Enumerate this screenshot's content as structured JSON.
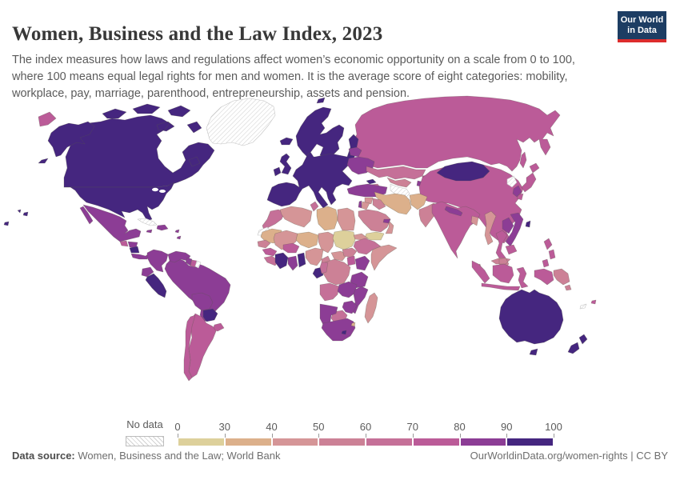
{
  "header": {
    "title": "Women, Business and the Law Index, 2023",
    "subtitle": "The index measures how laws and regulations affect women’s economic opportunity on a scale from 0 to 100, where 100 means equal legal rights for men and women. It is the average score of eight categories: mobility, workplace, pay, marriage, parenthood, entrepreneurship, assets and pension.",
    "logo": {
      "line1": "Our World",
      "line2": "in Data",
      "bg_color": "#1d3d63",
      "accent_color": "#dc2c2c"
    }
  },
  "legend": {
    "no_data_label": "No data",
    "ticks": [
      0,
      30,
      40,
      50,
      60,
      70,
      80,
      90,
      100
    ]
  },
  "footer": {
    "source_label": "Data source:",
    "source_text": " Women, Business and the Law; World Bank",
    "link_text": "OurWorldinData.org/women-rights",
    "separator": " | ",
    "license_text": "CC BY"
  },
  "chart_data": {
    "type": "heatmap",
    "subtype": "choropleth-world-map",
    "title": "Women, Business and the Law Index, 2023",
    "unit_range": [
      0,
      100
    ],
    "legend_position": "bottom",
    "scale": {
      "bins": [
        {
          "label": "0-30",
          "color": "#ddd09b"
        },
        {
          "label": "30-40",
          "color": "#dcb08b"
        },
        {
          "label": "40-50",
          "color": "#d59597"
        },
        {
          "label": "50-60",
          "color": "#cc8196"
        },
        {
          "label": "60-70",
          "color": "#c57098"
        },
        {
          "label": "70-80",
          "color": "#bb5b98"
        },
        {
          "label": "80-90",
          "color": "#8c3d95"
        },
        {
          "label": "90-100",
          "color": "#45267f"
        }
      ],
      "no_data": {
        "label": "No data",
        "pattern": "diagonal-hatch",
        "hatch_color": "#d2d2d2"
      }
    },
    "regions": [
      {
        "id": "greenland",
        "name": "Greenland",
        "value_bin": "no-data"
      },
      {
        "id": "canada",
        "name": "Canada",
        "value_bin": "90-100"
      },
      {
        "id": "usa",
        "name": "United States",
        "value_bin": "90-100"
      },
      {
        "id": "mexico",
        "name": "Mexico",
        "value_bin": "80-90"
      },
      {
        "id": "guatemala",
        "name": "Guatemala",
        "value_bin": "70-80"
      },
      {
        "id": "honduras",
        "name": "Honduras",
        "value_bin": "80-90"
      },
      {
        "id": "nicaragua",
        "name": "Nicaragua",
        "value_bin": "90-100"
      },
      {
        "id": "costa_rica_panama",
        "name": "Costa Rica & Panama",
        "value_bin": "80-90"
      },
      {
        "id": "cuba",
        "name": "Cuba",
        "value_bin": "no-data"
      },
      {
        "id": "hispaniola",
        "name": "Haiti & Dominican Republic",
        "value_bin": "80-90"
      },
      {
        "id": "jamaica",
        "name": "Jamaica",
        "value_bin": "80-90"
      },
      {
        "id": "lesser_antilles",
        "name": "Lesser Antilles",
        "value_bin": "80-90"
      },
      {
        "id": "brazil",
        "name": "Brazil",
        "value_bin": "80-90"
      },
      {
        "id": "colombia",
        "name": "Colombia",
        "value_bin": "80-90"
      },
      {
        "id": "venezuela",
        "name": "Venezuela",
        "value_bin": "80-90"
      },
      {
        "id": "guyana",
        "name": "Guyana",
        "value_bin": "80-90"
      },
      {
        "id": "suriname",
        "name": "Suriname",
        "value_bin": "70-80"
      },
      {
        "id": "french_guiana",
        "name": "French Guiana",
        "value_bin": "no-data"
      },
      {
        "id": "ecuador",
        "name": "Ecuador",
        "value_bin": "80-90"
      },
      {
        "id": "peru",
        "name": "Peru",
        "value_bin": "90-100"
      },
      {
        "id": "bolivia",
        "name": "Bolivia",
        "value_bin": "80-90"
      },
      {
        "id": "paraguay",
        "name": "Paraguay",
        "value_bin": "90-100"
      },
      {
        "id": "uruguay",
        "name": "Uruguay",
        "value_bin": "70-80"
      },
      {
        "id": "argentina",
        "name": "Argentina",
        "value_bin": "70-80"
      },
      {
        "id": "chile",
        "name": "Chile",
        "value_bin": "70-80"
      },
      {
        "id": "russia",
        "name": "Russia",
        "value_bin": "70-80"
      },
      {
        "id": "nordic",
        "name": "Norway, Sweden & Finland",
        "value_bin": "90-100"
      },
      {
        "id": "europe_main",
        "name": "Western & Central Europe",
        "value_bin": "90-100"
      },
      {
        "id": "iceland",
        "name": "Iceland",
        "value_bin": "90-100"
      },
      {
        "id": "uk",
        "name": "United Kingdom",
        "value_bin": "90-100"
      },
      {
        "id": "ireland",
        "name": "Ireland",
        "value_bin": "90-100"
      },
      {
        "id": "belarus",
        "name": "Belarus",
        "value_bin": "80-90"
      },
      {
        "id": "ukraine",
        "name": "Ukraine",
        "value_bin": "80-90"
      },
      {
        "id": "kazakhstan",
        "name": "Kazakhstan",
        "value_bin": "60-70"
      },
      {
        "id": "uzbekistan",
        "name": "Uzbekistan",
        "value_bin": "50-60"
      },
      {
        "id": "turkmenistan",
        "name": "Turkmenistan",
        "value_bin": "no-data"
      },
      {
        "id": "kyrgyzstan",
        "name": "Kyrgyzstan",
        "value_bin": "70-80"
      },
      {
        "id": "tajikistan",
        "name": "Tajikistan",
        "value_bin": "80-90"
      },
      {
        "id": "georgia",
        "name": "Georgia",
        "value_bin": "90-100"
      },
      {
        "id": "armenia_azerbaijan",
        "name": "Armenia & Azerbaijan",
        "value_bin": "60-70"
      },
      {
        "id": "turkey",
        "name": "Turkey",
        "value_bin": "80-90"
      },
      {
        "id": "china",
        "name": "China",
        "value_bin": "70-80"
      },
      {
        "id": "mongolia",
        "name": "Mongolia",
        "value_bin": "90-100"
      },
      {
        "id": "north_korea",
        "name": "North Korea",
        "value_bin": "no-data"
      },
      {
        "id": "south_korea",
        "name": "South Korea",
        "value_bin": "80-90"
      },
      {
        "id": "japan",
        "name": "Japan",
        "value_bin": "70-80"
      },
      {
        "id": "taiwan",
        "name": "Taiwan",
        "value_bin": "90-100"
      },
      {
        "id": "iran",
        "name": "Iran",
        "value_bin": "30-40"
      },
      {
        "id": "iraq",
        "name": "Iraq",
        "value_bin": "50-60"
      },
      {
        "id": "syria",
        "name": "Syria",
        "value_bin": "40-50"
      },
      {
        "id": "israel",
        "name": "Israel",
        "value_bin": "80-90"
      },
      {
        "id": "jordan",
        "name": "Jordan",
        "value_bin": "40-50"
      },
      {
        "id": "saudi_arabia",
        "name": "Saudi Arabia",
        "value_bin": "50-60"
      },
      {
        "id": "yemen",
        "name": "Yemen",
        "value_bin": "0-30"
      },
      {
        "id": "oman",
        "name": "Oman",
        "value_bin": "40-50"
      },
      {
        "id": "uae",
        "name": "United Arab Emirates",
        "value_bin": "80-90"
      },
      {
        "id": "afghanistan",
        "name": "Afghanistan",
        "value_bin": "30-40"
      },
      {
        "id": "pakistan",
        "name": "Pakistan",
        "value_bin": "50-60"
      },
      {
        "id": "india",
        "name": "India",
        "value_bin": "70-80"
      },
      {
        "id": "nepal",
        "name": "Nepal",
        "value_bin": "80-90"
      },
      {
        "id": "bangladesh",
        "name": "Bangladesh",
        "value_bin": "40-50"
      },
      {
        "id": "sri_lanka",
        "name": "Sri Lanka",
        "value_bin": "50-60"
      },
      {
        "id": "myanmar",
        "name": "Myanmar",
        "value_bin": "40-50"
      },
      {
        "id": "thailand",
        "name": "Thailand",
        "value_bin": "70-80"
      },
      {
        "id": "laos",
        "name": "Laos",
        "value_bin": "80-90"
      },
      {
        "id": "vietnam",
        "name": "Vietnam",
        "value_bin": "80-90"
      },
      {
        "id": "cambodia",
        "name": "Cambodia",
        "value_bin": "70-80"
      },
      {
        "id": "malaysia",
        "name": "Malaysia",
        "value_bin": "50-60"
      },
      {
        "id": "indonesia",
        "name": "Indonesia",
        "value_bin": "70-80"
      },
      {
        "id": "papua_new_guinea",
        "name": "Papua New Guinea",
        "value_bin": "50-60"
      },
      {
        "id": "philippines",
        "name": "Philippines",
        "value_bin": "70-80"
      },
      {
        "id": "morocco",
        "name": "Morocco",
        "value_bin": "60-70"
      },
      {
        "id": "western_sahara",
        "name": "Western Sahara",
        "value_bin": "no-data"
      },
      {
        "id": "algeria",
        "name": "Algeria",
        "value_bin": "40-50"
      },
      {
        "id": "tunisia",
        "name": "Tunisia",
        "value_bin": "60-70"
      },
      {
        "id": "libya",
        "name": "Libya",
        "value_bin": "30-40"
      },
      {
        "id": "egypt",
        "name": "Egypt",
        "value_bin": "40-50"
      },
      {
        "id": "mauritania",
        "name": "Mauritania",
        "value_bin": "30-40"
      },
      {
        "id": "mali",
        "name": "Mali",
        "value_bin": "40-50"
      },
      {
        "id": "niger",
        "name": "Niger",
        "value_bin": "30-40"
      },
      {
        "id": "chad",
        "name": "Chad",
        "value_bin": "40-50"
      },
      {
        "id": "sudan",
        "name": "Sudan",
        "value_bin": "0-30"
      },
      {
        "id": "eritrea_djibouti",
        "name": "Eritrea & Djibouti",
        "value_bin": "40-50"
      },
      {
        "id": "senegal",
        "name": "Senegal",
        "value_bin": "50-60"
      },
      {
        "id": "guinea",
        "name": "Guinea",
        "value_bin": "70-80"
      },
      {
        "id": "sierra_leone_liberia",
        "name": "Sierra Leone & Liberia",
        "value_bin": "60-70"
      },
      {
        "id": "cote_divoire",
        "name": "Côte d'Ivoire",
        "value_bin": "90-100"
      },
      {
        "id": "ghana",
        "name": "Ghana",
        "value_bin": "80-90"
      },
      {
        "id": "togo_benin",
        "name": "Togo & Benin",
        "value_bin": "90-100"
      },
      {
        "id": "burkina_faso",
        "name": "Burkina Faso",
        "value_bin": "70-80"
      },
      {
        "id": "nigeria",
        "name": "Nigeria",
        "value_bin": "40-50"
      },
      {
        "id": "cameroon",
        "name": "Cameroon",
        "value_bin": "50-60"
      },
      {
        "id": "central_african_republic",
        "name": "Central African Republic",
        "value_bin": "40-50"
      },
      {
        "id": "south_sudan",
        "name": "South Sudan",
        "value_bin": "50-60"
      },
      {
        "id": "ethiopia",
        "name": "Ethiopia",
        "value_bin": "60-70"
      },
      {
        "id": "somalia",
        "name": "Somalia",
        "value_bin": "40-50"
      },
      {
        "id": "kenya",
        "name": "Kenya",
        "value_bin": "80-90"
      },
      {
        "id": "uganda",
        "name": "Uganda",
        "value_bin": "70-80"
      },
      {
        "id": "drc",
        "name": "Democratic Republic of Congo",
        "value_bin": "50-60"
      },
      {
        "id": "gabon",
        "name": "Gabon",
        "value_bin": "90-100"
      },
      {
        "id": "congo",
        "name": "Republic of the Congo",
        "value_bin": "60-70"
      },
      {
        "id": "tanzania",
        "name": "Tanzania",
        "value_bin": "80-90"
      },
      {
        "id": "angola",
        "name": "Angola",
        "value_bin": "60-70"
      },
      {
        "id": "zambia",
        "name": "Zambia",
        "value_bin": "80-90"
      },
      {
        "id": "malawi_mozambique",
        "name": "Malawi & Mozambique",
        "value_bin": "80-90"
      },
      {
        "id": "zimbabwe",
        "name": "Zimbabwe",
        "value_bin": "80-90"
      },
      {
        "id": "botswana",
        "name": "Botswana",
        "value_bin": "60-70"
      },
      {
        "id": "namibia",
        "name": "Namibia",
        "value_bin": "80-90"
      },
      {
        "id": "south_africa",
        "name": "South Africa",
        "value_bin": "80-90"
      },
      {
        "id": "lesotho",
        "name": "Lesotho",
        "value_bin": "90-100"
      },
      {
        "id": "eswatini",
        "name": "Eswatini",
        "value_bin": "30-40"
      },
      {
        "id": "madagascar",
        "name": "Madagascar",
        "value_bin": "40-50"
      },
      {
        "id": "australia",
        "name": "Australia",
        "value_bin": "90-100"
      },
      {
        "id": "new_zealand",
        "name": "New Zealand",
        "value_bin": "90-100"
      },
      {
        "id": "fiji",
        "name": "Fiji",
        "value_bin": "70-80"
      },
      {
        "id": "new_caledonia",
        "name": "New Caledonia",
        "value_bin": "no-data"
      }
    ]
  }
}
